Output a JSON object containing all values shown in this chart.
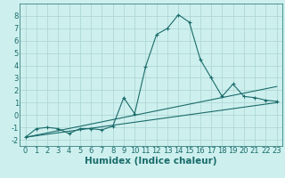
{
  "xlabel": "Humidex (Indice chaleur)",
  "bg_color": "#cdf0ee",
  "grid_color": "#afd8d5",
  "line_color": "#1a6b6b",
  "xlim": [
    -0.5,
    23.5
  ],
  "ylim": [
    -2.5,
    9.0
  ],
  "xticks": [
    0,
    1,
    2,
    3,
    4,
    5,
    6,
    7,
    8,
    9,
    10,
    11,
    12,
    13,
    14,
    15,
    16,
    17,
    18,
    19,
    20,
    21,
    22,
    23
  ],
  "yticks": [
    -2,
    -1,
    0,
    1,
    2,
    3,
    4,
    5,
    6,
    7,
    8
  ],
  "line1_x": [
    0,
    1,
    2,
    3,
    4,
    5,
    6,
    7,
    8,
    9,
    10,
    11,
    12,
    13,
    14,
    15,
    16,
    17,
    18,
    19,
    20,
    21,
    22,
    23
  ],
  "line1_y": [
    -1.8,
    -1.1,
    -1.0,
    -1.1,
    -1.5,
    -1.1,
    -1.1,
    -1.2,
    -0.9,
    1.4,
    0.1,
    3.9,
    6.5,
    7.0,
    8.1,
    7.5,
    4.5,
    3.0,
    1.5,
    2.5,
    1.5,
    1.4,
    1.2,
    1.1
  ],
  "line2_x": [
    0,
    23
  ],
  "line2_y": [
    -1.8,
    2.3
  ],
  "line3_x": [
    0,
    23
  ],
  "line3_y": [
    -1.8,
    1.0
  ],
  "xlabel_fontsize": 7.5,
  "tick_fontsize": 6.0
}
